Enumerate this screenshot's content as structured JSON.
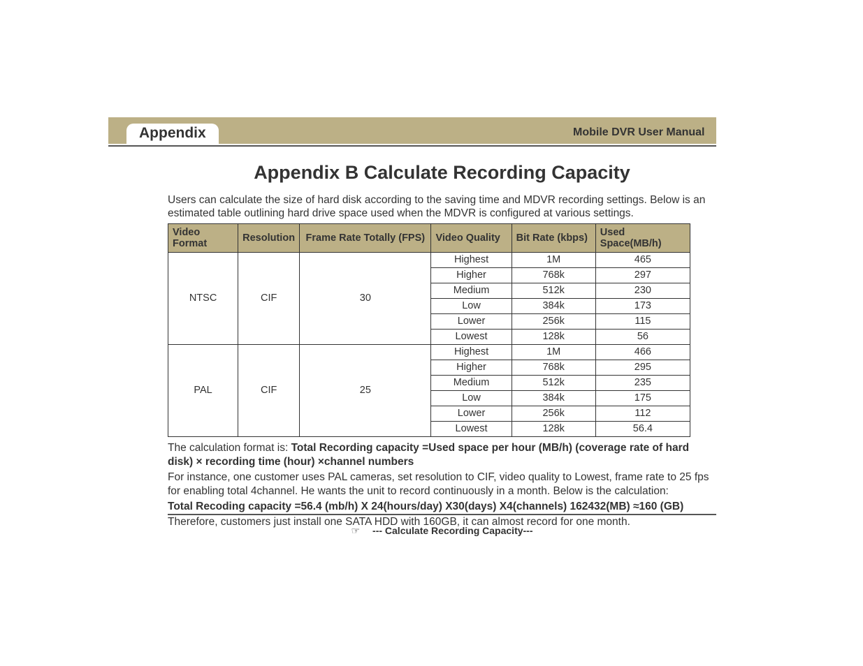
{
  "header": {
    "tab": "Appendix",
    "manual": "Mobile DVR User Manual"
  },
  "title": "Appendix B   Calculate Recording Capacity",
  "intro": "Users can calculate the size of hard disk according to the saving time and MDVR recording settings. Below is an estimated table outlining hard drive space used when the MDVR is configured at various settings.",
  "table": {
    "columns": [
      "Video Format",
      "Resolution",
      "Frame Rate   Totally (FPS)",
      "Video Quality",
      "Bit Rate (kbps)",
      "Used Space(MB/h)"
    ],
    "col_widths": [
      "100px",
      "80px",
      "188px",
      "115px",
      "120px",
      "135px"
    ],
    "header_bg": "#bcb086",
    "border_color": "#333333",
    "groups": [
      {
        "format": "NTSC",
        "resolution": "CIF",
        "fps": "30",
        "rows": [
          {
            "quality": "Highest",
            "bitrate": "1M",
            "space": "465"
          },
          {
            "quality": "Higher",
            "bitrate": "768k",
            "space": "297"
          },
          {
            "quality": "Medium",
            "bitrate": "512k",
            "space": "230"
          },
          {
            "quality": "Low",
            "bitrate": "384k",
            "space": "173"
          },
          {
            "quality": "Lower",
            "bitrate": "256k",
            "space": "115"
          },
          {
            "quality": "Lowest",
            "bitrate": "128k",
            "space": "56"
          }
        ]
      },
      {
        "format": "PAL",
        "resolution": "CIF",
        "fps": "25",
        "rows": [
          {
            "quality": "Highest",
            "bitrate": "1M",
            "space": "466"
          },
          {
            "quality": "Higher",
            "bitrate": "768k",
            "space": "295"
          },
          {
            "quality": "Medium",
            "bitrate": "512k",
            "space": "235"
          },
          {
            "quality": "Low",
            "bitrate": "384k",
            "space": "175"
          },
          {
            "quality": "Lower",
            "bitrate": "256k",
            "space": "112"
          },
          {
            "quality": "Lowest",
            "bitrate": "128k",
            "space": "56.4"
          }
        ]
      }
    ]
  },
  "calc_label": "The calculation format is: ",
  "calc_formula": "Total Recording capacity =Used space per hour (MB/h) (coverage rate of hard disk) × recording time (hour) ×channel numbers",
  "example_intro": "For instance, one customer uses PAL cameras, set resolution to CIF, video quality to Lowest, frame rate to 25 fps for enabling total 4channel. He wants the unit to record continuously in a month. Below is the calculation:",
  "example_calc": "Total Recoding capacity =56.4 (mb/h) X 24(hours/day) X30(days) X4(channels) 162432(MB) ≈160 (GB)",
  "example_conclusion": "Therefore, customers just install one SATA HDD with 160GB, it can almost record for one month.",
  "footer": {
    "symbol": "☞",
    "text": "--- Calculate Recording Capacity---"
  }
}
